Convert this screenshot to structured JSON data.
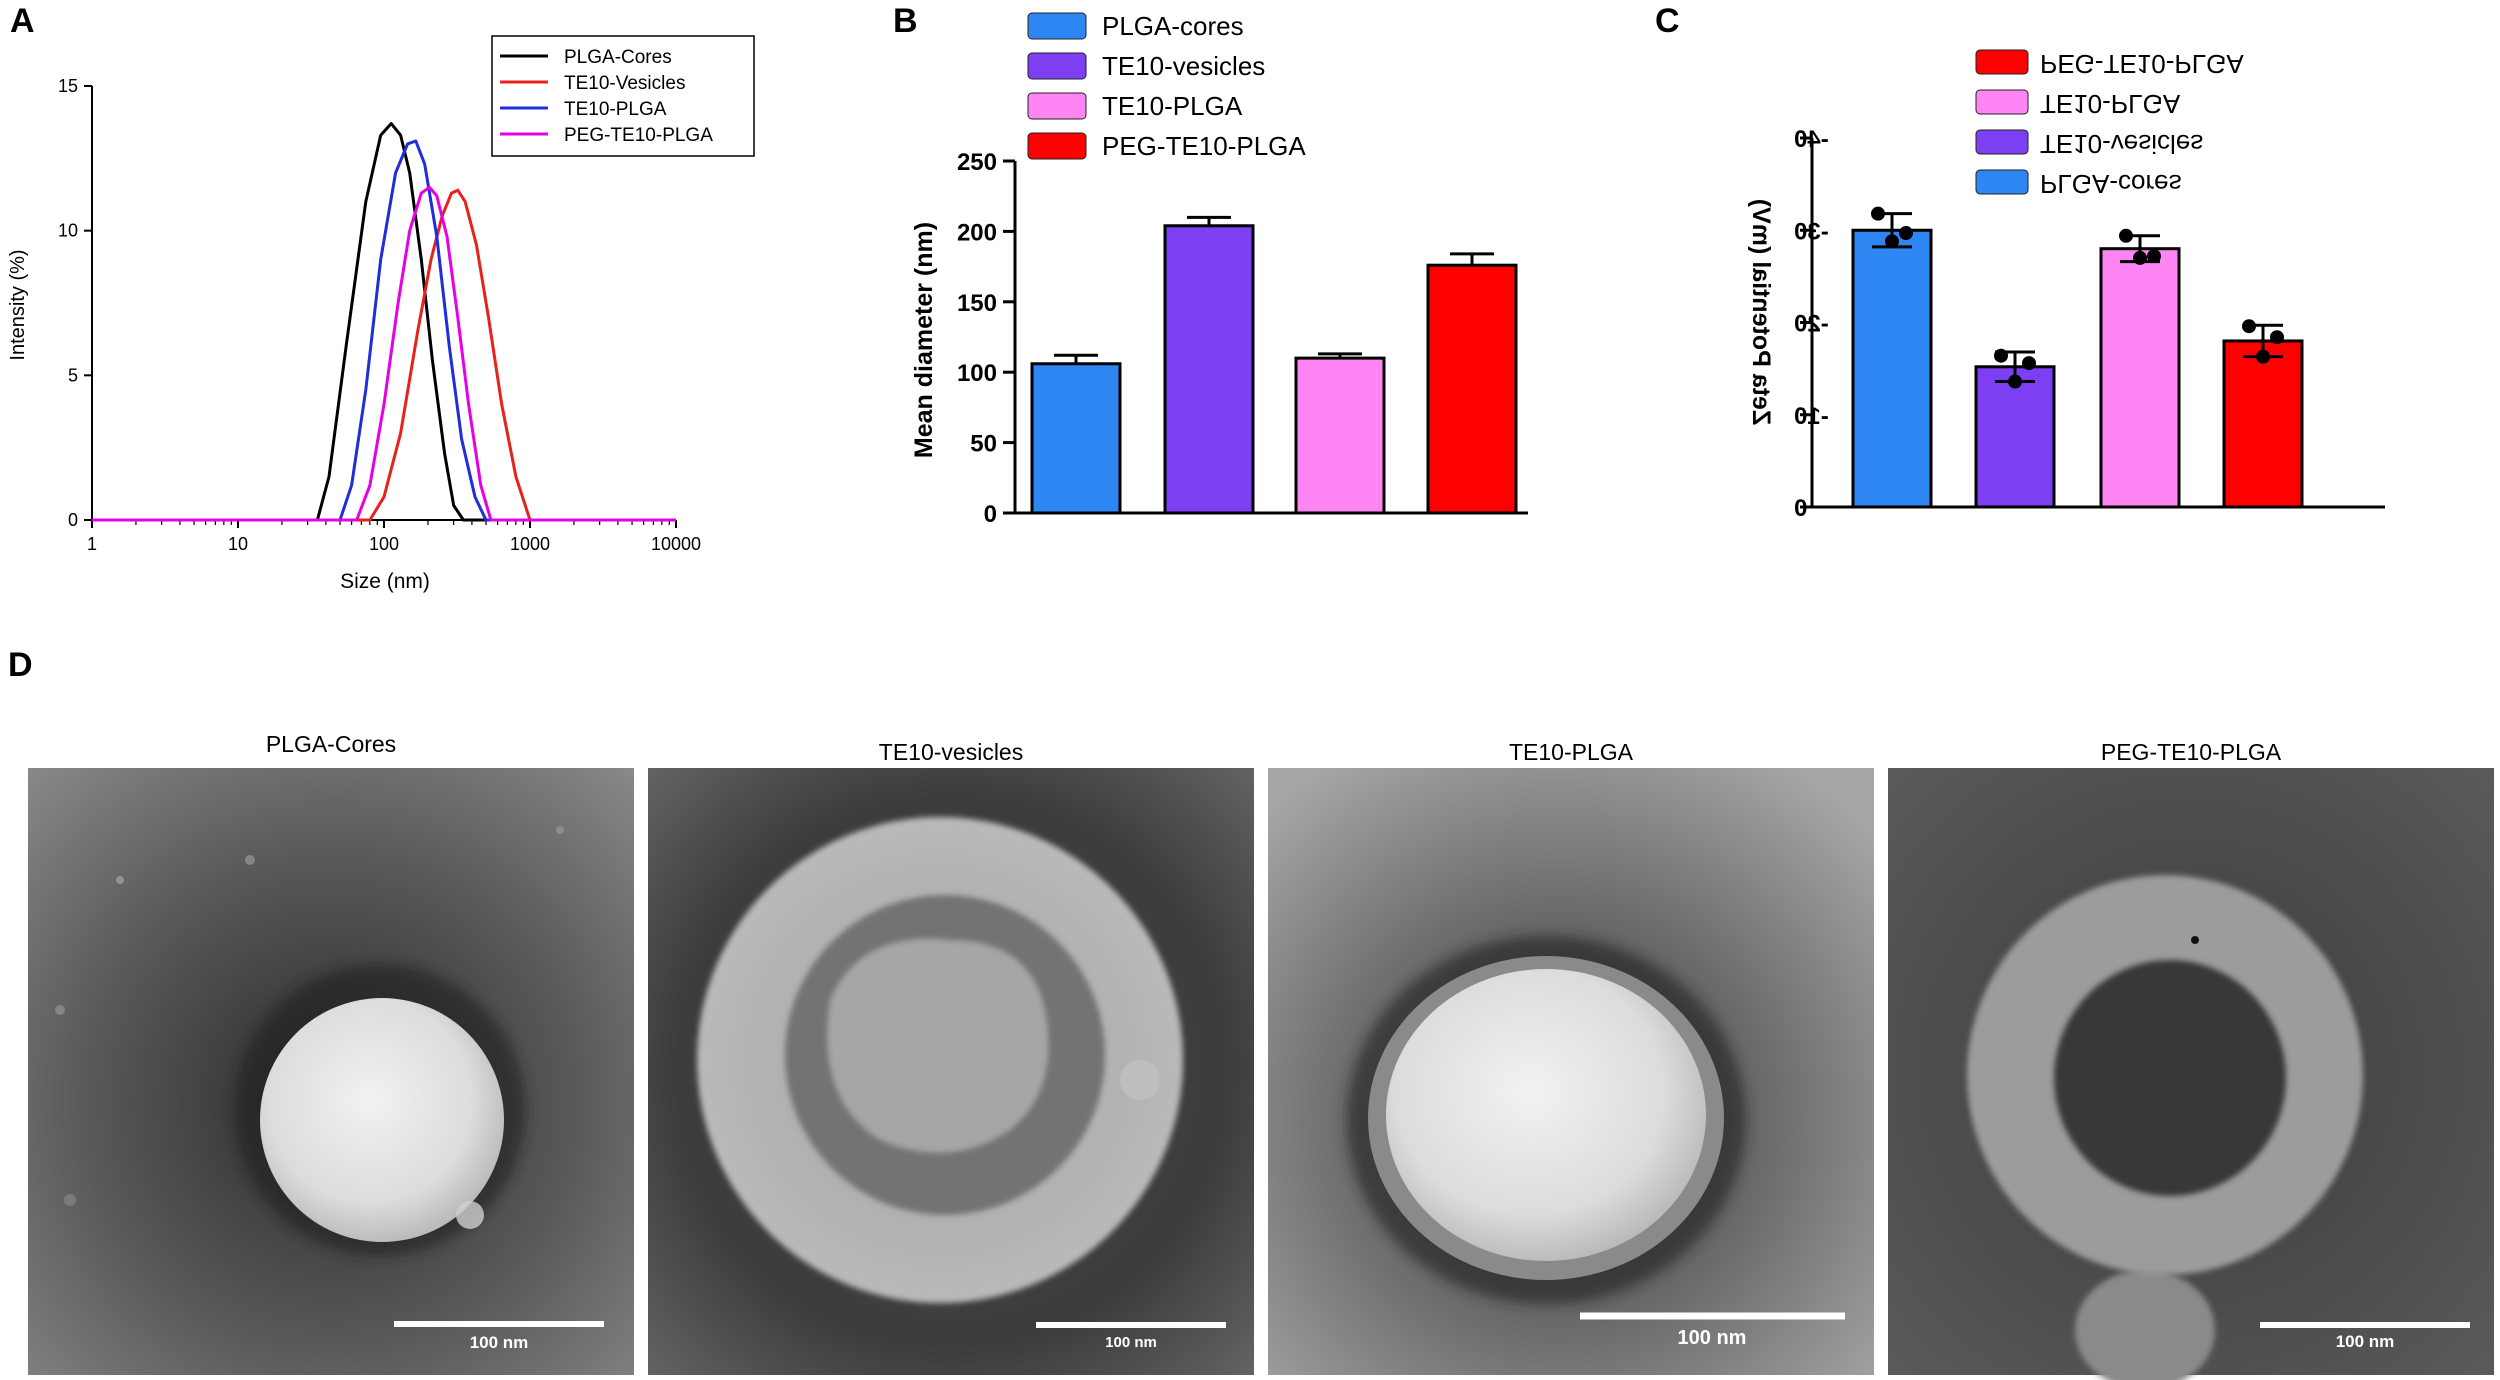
{
  "panels": {
    "a": "A",
    "b": "B",
    "c": "C",
    "d": "D"
  },
  "chart_data": [
    {
      "panel": "A",
      "type": "line",
      "xlabel": "Size (nm)",
      "ylabel": "Intensity (%)",
      "xscale": "log",
      "xlim": [
        1,
        10000
      ],
      "ylim": [
        0,
        15
      ],
      "xticks": [
        "1",
        "10",
        "100",
        "1000",
        "10000"
      ],
      "yticks": [
        "0",
        "5",
        "10",
        "15"
      ],
      "legend_position": "top-right",
      "series": [
        {
          "name": "PLGA-Cores",
          "color": "#000000",
          "x": [
            1,
            10,
            35,
            42,
            55,
            75,
            95,
            112,
            130,
            150,
            180,
            215,
            260,
            300,
            350,
            10000
          ],
          "y": [
            0,
            0,
            0,
            1.5,
            6,
            11,
            13.3,
            13.7,
            13.3,
            12,
            9,
            5.5,
            2.3,
            0.5,
            0,
            0
          ]
        },
        {
          "name": "TE10-Vesicles",
          "color": "#e8201e",
          "x": [
            1,
            10,
            80,
            100,
            130,
            170,
            210,
            250,
            290,
            320,
            360,
            430,
            520,
            640,
            800,
            1000,
            10000
          ],
          "y": [
            0,
            0,
            0,
            0.8,
            3,
            6.5,
            9,
            10.5,
            11.3,
            11.4,
            11,
            9.5,
            7,
            4,
            1.5,
            0,
            0
          ]
        },
        {
          "name": "TE10-PLGA",
          "color": "#1f2ddc",
          "x": [
            1,
            10,
            50,
            60,
            75,
            95,
            120,
            145,
            165,
            190,
            230,
            280,
            340,
            420,
            500,
            10000
          ],
          "y": [
            0,
            0,
            0,
            1.2,
            4.5,
            9,
            12,
            13,
            13.1,
            12.3,
            9.8,
            6,
            2.8,
            0.8,
            0,
            0
          ]
        },
        {
          "name": "PEG-TE10-PLGA",
          "color": "#e600e6",
          "x": [
            1,
            10,
            65,
            80,
            100,
            125,
            150,
            180,
            205,
            230,
            270,
            320,
            380,
            460,
            540,
            10000
          ],
          "y": [
            0,
            0,
            0,
            1.2,
            4,
            7.5,
            10,
            11.3,
            11.5,
            11.2,
            9.8,
            7,
            4,
            1.2,
            0,
            0
          ]
        }
      ]
    },
    {
      "panel": "B",
      "type": "bar",
      "ylabel": "Mean diameter (nm)",
      "ylim": [
        0,
        250
      ],
      "yticks": [
        "0",
        "50",
        "100",
        "150",
        "200",
        "250"
      ],
      "legend_position": "top",
      "categories": [
        "PLGA-cores",
        "TE10-vesicles",
        "TE10-PLGA",
        "PEG-TE10-PLGA"
      ],
      "colors": [
        "#2d86f2",
        "#7d3ff2",
        "#ff85f5",
        "#ff0000"
      ],
      "values": [
        106,
        204,
        110,
        176
      ],
      "errors": [
        6,
        6,
        3,
        8
      ]
    },
    {
      "panel": "C",
      "type": "bar",
      "ylabel": "Zeta Potential (mV)",
      "ylim": [
        0,
        -40
      ],
      "yticks": [
        "0",
        "-10",
        "-20",
        "-30",
        "-40"
      ],
      "rendered_mirrored": true,
      "legend_position": "top",
      "categories": [
        "PLGA-cores",
        "TE10-vesicles",
        "TE10-PLGA",
        "PEG-TE10-PLGA"
      ],
      "colors": [
        "#2d86f2",
        "#7d3ff2",
        "#ff85f5",
        "#ff0000"
      ],
      "values": [
        -30,
        -15.2,
        -28,
        -18
      ],
      "errors": [
        1.8,
        1.6,
        1.4,
        1.7
      ],
      "points": [
        [
          -31.8,
          -29.7,
          -28.8
        ],
        [
          -16.4,
          -15.6,
          -13.6
        ],
        [
          -29.4,
          -27.2,
          -27.0
        ],
        [
          -19.6,
          -18.4,
          -16.3
        ]
      ]
    }
  ],
  "tem_panels": [
    {
      "caption": "PLGA-Cores",
      "scale": "100 nm"
    },
    {
      "caption": "TE10-vesicles",
      "scale": "100 nm"
    },
    {
      "caption": "TE10-PLGA",
      "scale": "100 nm"
    },
    {
      "caption": "PEG-TE10-PLGA",
      "scale": "100 nm"
    }
  ]
}
